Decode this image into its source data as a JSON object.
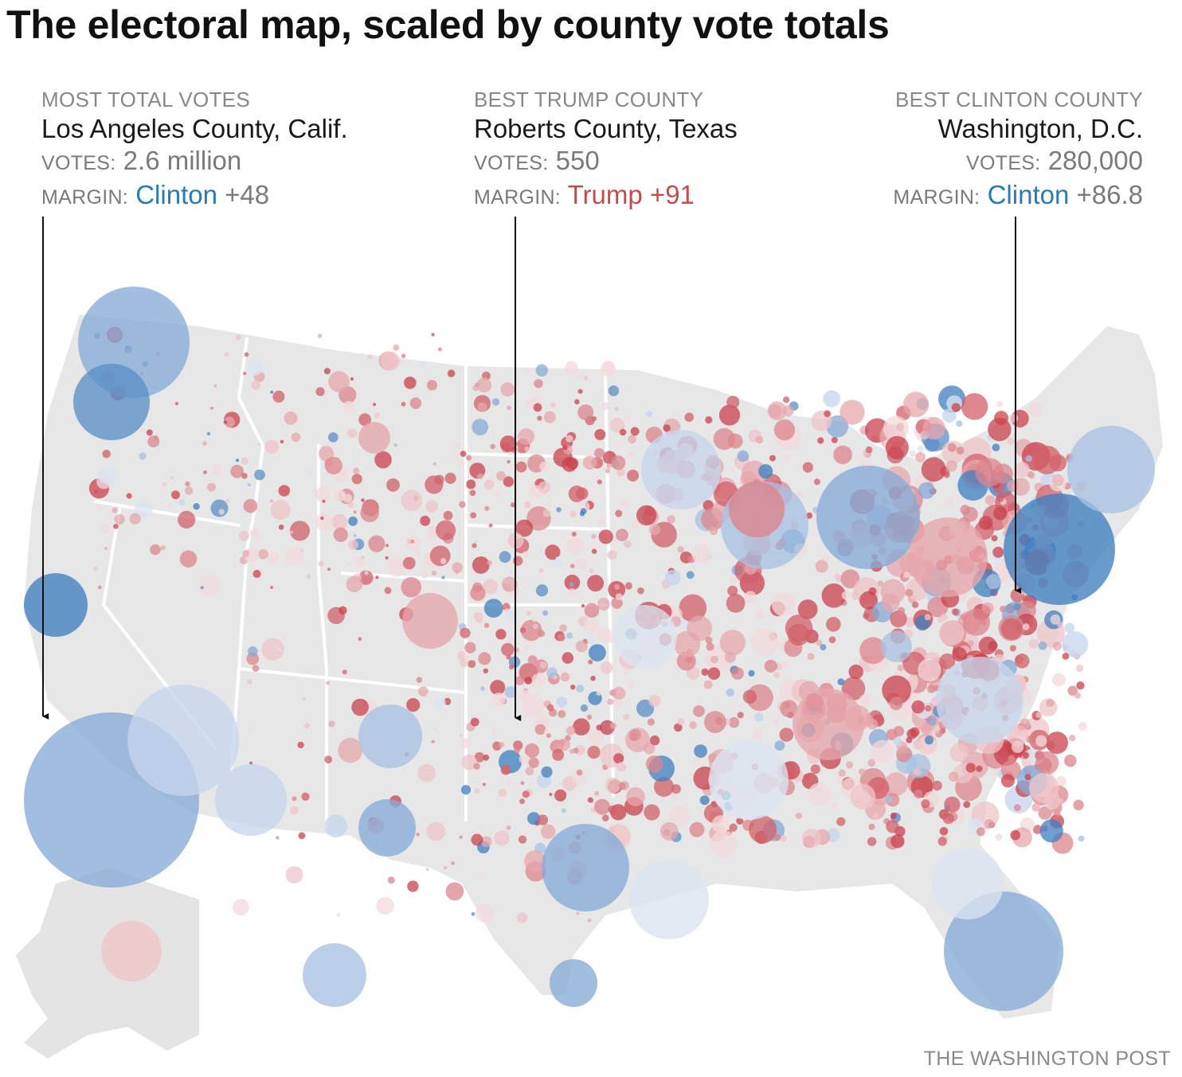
{
  "title": "The electoral map, scaled by county vote totals",
  "credit": "THE WASHINGTON POST",
  "colors": {
    "clinton": "#2a7bb3",
    "trump": "#c84a4a",
    "land": "#e7e7e7",
    "label": "#888888"
  },
  "callouts": [
    {
      "label": "MOST TOTAL VOTES",
      "county": "Los Angeles County, Calif.",
      "votes_key": "VOTES:",
      "votes": "2.6 million",
      "margin_key": "MARGIN:",
      "candidate": "Clinton",
      "margin": "+48"
    },
    {
      "label": "BEST TRUMP COUNTY",
      "county": "Roberts County, Texas",
      "votes_key": "VOTES:",
      "votes": "550",
      "margin_key": "MARGIN:",
      "candidate": "Trump",
      "margin": "+91"
    },
    {
      "label": "BEST CLINTON COUNTY",
      "county": "Washington, D.C.",
      "votes_key": "VOTES:",
      "votes": "280,000",
      "margin_key": "MARGIN:",
      "candidate": "Clinton",
      "margin": "+86.8"
    }
  ]
}
